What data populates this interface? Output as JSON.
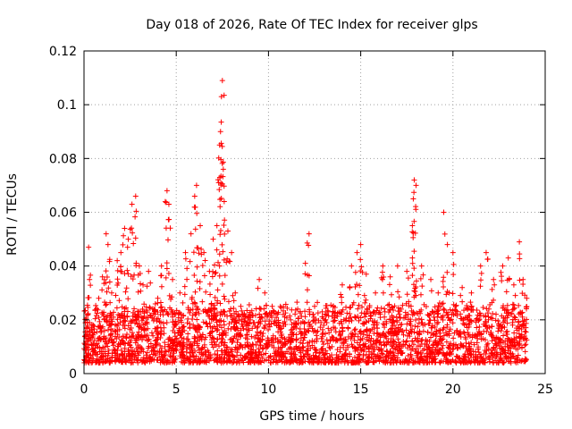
{
  "chart_data": {
    "type": "scatter",
    "title": "Day 018 of 2026, Rate Of TEC Index for receiver glps",
    "xlabel": "GPS time / hours",
    "ylabel": "ROTI / TECUs",
    "xlim": [
      0,
      25
    ],
    "ylim": [
      0,
      0.12
    ],
    "x_ticks": [
      "0",
      "5",
      "10",
      "15",
      "20",
      "25"
    ],
    "x_tick_values": [
      0,
      5,
      10,
      15,
      20,
      25
    ],
    "y_ticks": [
      "0",
      "0.02",
      "0.04",
      "0.06",
      "0.08",
      "0.1",
      "0.12"
    ],
    "y_tick_values": [
      0,
      0.02,
      0.04,
      0.06,
      0.08,
      0.1,
      0.12
    ],
    "grid": true,
    "marker": "+",
    "color": "#ff0000",
    "series": [
      {
        "name": "ROTI",
        "points": [
          [
            0.1,
            0.012
          ],
          [
            0.2,
            0.022
          ],
          [
            0.25,
            0.047
          ],
          [
            0.3,
            0.035
          ],
          [
            0.5,
            0.018
          ],
          [
            0.8,
            0.028
          ],
          [
            1.0,
            0.036
          ],
          [
            1.2,
            0.052
          ],
          [
            1.3,
            0.048
          ],
          [
            1.5,
            0.03
          ],
          [
            1.8,
            0.042
          ],
          [
            2.0,
            0.045
          ],
          [
            2.2,
            0.054
          ],
          [
            2.4,
            0.05
          ],
          [
            2.6,
            0.063
          ],
          [
            2.8,
            0.066
          ],
          [
            3.0,
            0.04
          ],
          [
            3.2,
            0.033
          ],
          [
            3.5,
            0.038
          ],
          [
            4.0,
            0.028
          ],
          [
            4.2,
            0.04
          ],
          [
            4.5,
            0.068
          ],
          [
            4.6,
            0.063
          ],
          [
            4.8,
            0.035
          ],
          [
            5.2,
            0.03
          ],
          [
            5.5,
            0.045
          ],
          [
            5.8,
            0.052
          ],
          [
            6.0,
            0.066
          ],
          [
            6.1,
            0.07
          ],
          [
            6.3,
            0.055
          ],
          [
            6.5,
            0.045
          ],
          [
            6.8,
            0.038
          ],
          [
            7.0,
            0.05
          ],
          [
            7.2,
            0.046
          ],
          [
            7.3,
            0.071
          ],
          [
            7.35,
            0.085
          ],
          [
            7.4,
            0.09
          ],
          [
            7.45,
            0.103
          ],
          [
            7.5,
            0.109
          ],
          [
            7.55,
            0.076
          ],
          [
            7.6,
            0.064
          ],
          [
            7.8,
            0.053
          ],
          [
            8.0,
            0.045
          ],
          [
            8.2,
            0.03
          ],
          [
            8.5,
            0.025
          ],
          [
            9.0,
            0.022
          ],
          [
            9.5,
            0.035
          ],
          [
            9.8,
            0.03
          ],
          [
            10.2,
            0.025
          ],
          [
            10.8,
            0.022
          ],
          [
            11.2,
            0.02
          ],
          [
            11.8,
            0.015
          ],
          [
            12.0,
            0.041
          ],
          [
            12.2,
            0.052
          ],
          [
            12.5,
            0.025
          ],
          [
            13.0,
            0.018
          ],
          [
            13.5,
            0.025
          ],
          [
            14.0,
            0.033
          ],
          [
            14.5,
            0.04
          ],
          [
            14.8,
            0.045
          ],
          [
            15.0,
            0.048
          ],
          [
            15.3,
            0.037
          ],
          [
            15.8,
            0.03
          ],
          [
            16.2,
            0.04
          ],
          [
            16.6,
            0.036
          ],
          [
            17.0,
            0.04
          ],
          [
            17.5,
            0.038
          ],
          [
            17.8,
            0.055
          ],
          [
            17.85,
            0.065
          ],
          [
            17.9,
            0.072
          ],
          [
            18.0,
            0.07
          ],
          [
            18.3,
            0.04
          ],
          [
            18.8,
            0.035
          ],
          [
            19.2,
            0.03
          ],
          [
            19.5,
            0.06
          ],
          [
            19.7,
            0.048
          ],
          [
            20.0,
            0.045
          ],
          [
            20.5,
            0.032
          ],
          [
            21.0,
            0.03
          ],
          [
            21.5,
            0.04
          ],
          [
            21.8,
            0.045
          ],
          [
            22.2,
            0.035
          ],
          [
            22.7,
            0.04
          ],
          [
            23.0,
            0.043
          ],
          [
            23.3,
            0.033
          ],
          [
            23.6,
            0.049
          ],
          [
            23.8,
            0.035
          ],
          [
            24.0,
            0.028
          ]
        ]
      }
    ],
    "baseline": {
      "description": "dense noise cloud of ROTI values between about 0.005 and 0.02 across all hours",
      "min_value": 0.004,
      "max_value": 0.025
    }
  }
}
